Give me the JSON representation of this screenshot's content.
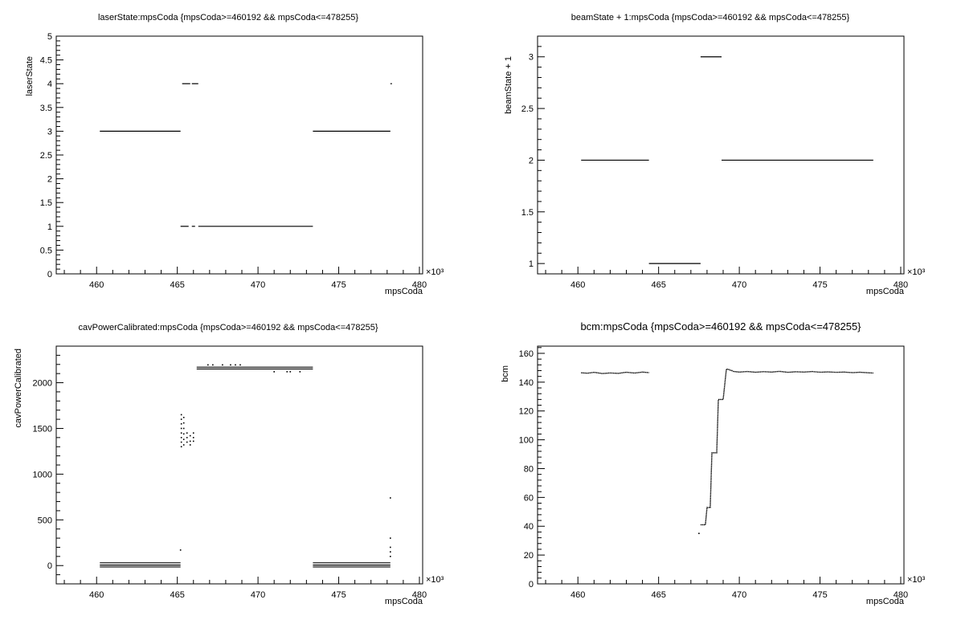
{
  "chart_data": [
    {
      "type": "scatter",
      "title": "laserState:mpsCoda {mpsCoda>=460192 && mpsCoda<=478255}",
      "xlabel": "mpsCoda",
      "ylabel": "laserState",
      "x_multiplier": "×10³",
      "xlim": [
        457.5,
        480.2
      ],
      "ylim": [
        0,
        5
      ],
      "x_ticks": [
        "460",
        "465",
        "470",
        "475",
        "480"
      ],
      "y_ticks": [
        "0",
        "0.5",
        "1",
        "1.5",
        "2",
        "2.5",
        "3",
        "3.5",
        "4",
        "4.5",
        "5"
      ],
      "segments": [
        {
          "x": [
            460.2,
            465.2
          ],
          "y": 3
        },
        {
          "x": [
            465.3,
            465.8
          ],
          "y": 4
        },
        {
          "x": [
            465.9,
            466.3
          ],
          "y": 4
        },
        {
          "x": [
            465.2,
            465.7
          ],
          "y": 1
        },
        {
          "x": [
            465.9,
            466.1
          ],
          "y": 1
        },
        {
          "x": [
            466.3,
            473.4
          ],
          "y": 1
        },
        {
          "x": [
            473.4,
            478.2
          ],
          "y": 3
        },
        {
          "x": [
            478.2,
            478.3
          ],
          "y": 4
        }
      ]
    },
    {
      "type": "scatter",
      "title": "beamState + 1:mpsCoda {mpsCoda>=460192 && mpsCoda<=478255}",
      "xlabel": "mpsCoda",
      "ylabel": "beamState + 1",
      "x_multiplier": "×10³",
      "xlim": [
        457.5,
        480.2
      ],
      "ylim": [
        0.9,
        3.2
      ],
      "x_ticks": [
        "460",
        "465",
        "470",
        "475",
        "480"
      ],
      "y_ticks": [
        "1",
        "1.5",
        "2",
        "2.5",
        "3"
      ],
      "segments": [
        {
          "x": [
            460.2,
            464.4
          ],
          "y": 2
        },
        {
          "x": [
            464.4,
            467.6
          ],
          "y": 1
        },
        {
          "x": [
            467.6,
            468.9
          ],
          "y": 3
        },
        {
          "x": [
            468.9,
            478.3
          ],
          "y": 2
        }
      ]
    },
    {
      "type": "scatter",
      "title": "cavPowerCalibrated:mpsCoda {mpsCoda>=460192 && mpsCoda<=478255}",
      "xlabel": "mpsCoda",
      "ylabel": "cavPowerCalibrated",
      "x_multiplier": "×10³",
      "xlim": [
        457.5,
        480.2
      ],
      "ylim": [
        -200,
        2400
      ],
      "x_ticks": [
        "460",
        "465",
        "470",
        "475",
        "480"
      ],
      "y_ticks": [
        "0",
        "500",
        "1000",
        "1500",
        "2000"
      ],
      "segments": [
        {
          "x": [
            460.2,
            465.2
          ],
          "y": 30
        },
        {
          "x": [
            460.2,
            465.2
          ],
          "y": 5
        },
        {
          "x": [
            460.2,
            465.2
          ],
          "y": -15
        },
        {
          "x": [
            466.2,
            473.4
          ],
          "y": 2170
        },
        {
          "x": [
            466.2,
            473.4
          ],
          "y": 2150
        },
        {
          "x": [
            473.4,
            478.2
          ],
          "y": 30
        },
        {
          "x": [
            473.4,
            478.2
          ],
          "y": 5
        },
        {
          "x": [
            473.4,
            478.2
          ],
          "y": -15
        }
      ],
      "points": [
        {
          "x": 465.25,
          "y": 1650
        },
        {
          "x": 465.25,
          "y": 1600
        },
        {
          "x": 465.25,
          "y": 1550
        },
        {
          "x": 465.25,
          "y": 1500
        },
        {
          "x": 465.25,
          "y": 1450
        },
        {
          "x": 465.25,
          "y": 1400
        },
        {
          "x": 465.25,
          "y": 1350
        },
        {
          "x": 465.25,
          "y": 1300
        },
        {
          "x": 465.4,
          "y": 1620
        },
        {
          "x": 465.4,
          "y": 1560
        },
        {
          "x": 465.4,
          "y": 1500
        },
        {
          "x": 465.4,
          "y": 1440
        },
        {
          "x": 465.4,
          "y": 1380
        },
        {
          "x": 465.4,
          "y": 1320
        },
        {
          "x": 465.6,
          "y": 1450
        },
        {
          "x": 465.6,
          "y": 1400
        },
        {
          "x": 465.6,
          "y": 1350
        },
        {
          "x": 465.8,
          "y": 1420
        },
        {
          "x": 465.8,
          "y": 1360
        },
        {
          "x": 465.8,
          "y": 1320
        },
        {
          "x": 466.0,
          "y": 1450
        },
        {
          "x": 466.0,
          "y": 1400
        },
        {
          "x": 466.0,
          "y": 1360
        },
        {
          "x": 465.2,
          "y": 170
        },
        {
          "x": 466.9,
          "y": 2195
        },
        {
          "x": 467.2,
          "y": 2195
        },
        {
          "x": 467.8,
          "y": 2195
        },
        {
          "x": 468.3,
          "y": 2195
        },
        {
          "x": 468.6,
          "y": 2195
        },
        {
          "x": 468.9,
          "y": 2195
        },
        {
          "x": 471.0,
          "y": 2120
        },
        {
          "x": 471.8,
          "y": 2120
        },
        {
          "x": 472.0,
          "y": 2120
        },
        {
          "x": 472.6,
          "y": 2120
        },
        {
          "x": 478.2,
          "y": 740
        },
        {
          "x": 478.2,
          "y": 300
        },
        {
          "x": 478.2,
          "y": 200
        },
        {
          "x": 478.2,
          "y": 150
        },
        {
          "x": 478.2,
          "y": 100
        }
      ]
    },
    {
      "type": "scatter",
      "title": "bcm:mpsCoda {mpsCoda>=460192 && mpsCoda<=478255}",
      "xlabel": "mpsCoda",
      "ylabel": "bcm",
      "x_multiplier": "×10³",
      "xlim": [
        457.5,
        480.2
      ],
      "ylim": [
        0,
        165
      ],
      "x_ticks": [
        "460",
        "465",
        "470",
        "475",
        "480"
      ],
      "y_ticks": [
        "0",
        "20",
        "40",
        "60",
        "80",
        "100",
        "120",
        "140",
        "160"
      ],
      "series": [
        {
          "x": [
            460.2,
            460.6,
            461.0,
            461.5,
            462.0,
            462.5,
            463.0,
            463.5,
            464.0,
            464.4
          ],
          "y": [
            146.5,
            146.2,
            146.8,
            146.0,
            146.4,
            146.1,
            146.9,
            146.3,
            147.0,
            146.6
          ]
        },
        {
          "x": [
            467.6,
            467.9,
            468.0,
            468.2,
            468.3,
            468.6,
            468.7,
            468.9,
            469.0,
            469.2,
            469.3,
            469.5,
            469.6
          ],
          "y": [
            41,
            41,
            53,
            53,
            91,
            91,
            128,
            128,
            128,
            149,
            149,
            148,
            148
          ]
        },
        {
          "x": [
            469.6,
            470.0,
            470.5,
            471.0,
            471.5,
            472.0,
            472.5,
            473.0,
            473.5,
            474.0,
            474.5,
            475.0,
            475.5,
            476.0,
            476.5,
            477.0,
            477.5,
            478.0,
            478.3
          ],
          "y": [
            147.5,
            147.0,
            147.4,
            146.9,
            147.3,
            147.0,
            147.5,
            146.8,
            147.2,
            147.0,
            147.4,
            146.9,
            147.1,
            146.8,
            147.0,
            146.6,
            146.9,
            146.5,
            146.3
          ]
        }
      ],
      "points": [
        {
          "x": 467.5,
          "y": 35
        }
      ]
    }
  ]
}
